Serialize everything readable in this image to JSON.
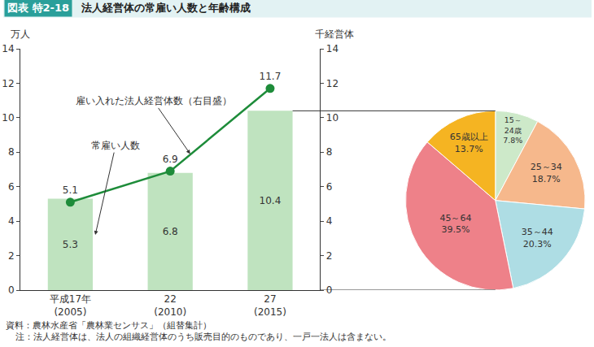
{
  "header": {
    "figure_number": "図表 特2-18",
    "title": "法人経営体の常雇い人数と年齢構成"
  },
  "source": "資料：農林水産省「農林業センサス」（組替集計）",
  "note": "注：法人経営体は、法人の組織経営体のうち販売目的のものであり、一戸一法人は含まない。",
  "chart_data": [
    {
      "type": "bar",
      "categories": [
        "平成17年\n(2005)",
        "22\n(2010)",
        "27\n(2015)"
      ],
      "series": [
        {
          "name": "常雇い人数",
          "type": "bar",
          "color": "#bfe3bf",
          "values": [
            5.3,
            6.8,
            10.4
          ]
        },
        {
          "name": "雇い入れた法人経営体数（右目盛）",
          "type": "line",
          "axis": "y2",
          "color": "#1e8c3a",
          "marker": "circle",
          "values": [
            5.1,
            6.9,
            11.7
          ]
        }
      ],
      "ylabel": "万人",
      "y2label": "千経営体",
      "ylim": [
        0,
        14
      ],
      "yticks": [
        0,
        2,
        4,
        6,
        8,
        10,
        12,
        14
      ],
      "y2lim": [
        0,
        14
      ],
      "y2ticks": [
        0,
        2,
        4,
        6,
        8,
        10,
        12,
        14
      ],
      "data_labels": true,
      "grid": false
    },
    {
      "type": "pie",
      "categories": [
        "15～\n24歳",
        "25～34",
        "35～44",
        "45～64",
        "65歳以上"
      ],
      "values": [
        7.8,
        18.7,
        20.3,
        39.5,
        13.7
      ],
      "value_labels": [
        "7.8%",
        "18.7%",
        "20.3%",
        "39.5%",
        "13.7%"
      ],
      "colors": [
        "#cde9c9",
        "#f6b88c",
        "#aedde4",
        "#ee8189",
        "#f5b422"
      ],
      "data_labels": true
    }
  ]
}
